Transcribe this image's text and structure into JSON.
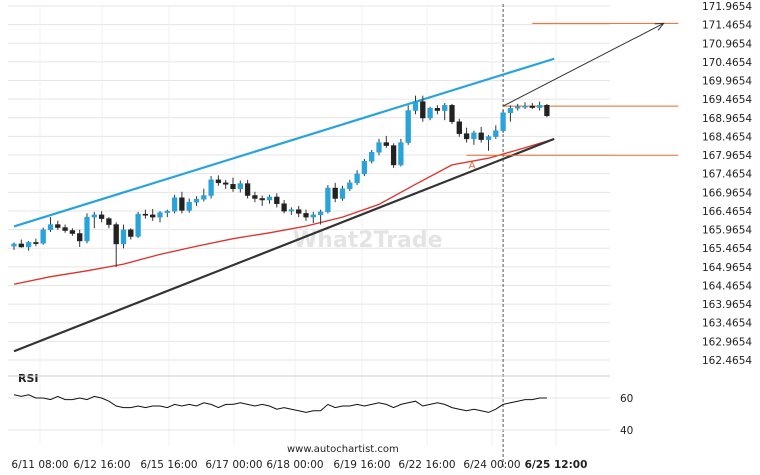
{
  "watermark": "What2Trade",
  "source_url": "www.autochartist.com",
  "rsi_label": "RSI",
  "point_label": "A",
  "colors": {
    "bull": "#29a3dc",
    "bear": "#222222",
    "upper_channel": "#29a3dc",
    "lower_channel": "#333333",
    "ma": "#e0302a",
    "level": "#e36a2a",
    "forecast_arrow": "#333333",
    "grid": "#e5e5e5",
    "rsi_line": "#111111",
    "vline": "#555555"
  },
  "chart_data": [
    {
      "type": "candlestick",
      "title": "",
      "ylim": [
        162.4654,
        171.9654
      ],
      "y_ticks": [
        "171.9654",
        "171.4654",
        "170.9654",
        "170.4654",
        "169.9654",
        "169.4654",
        "168.9654",
        "168.4654",
        "167.9654",
        "167.4654",
        "166.9654",
        "166.4654",
        "165.9654",
        "165.4654",
        "164.9654",
        "164.4654",
        "163.9654",
        "163.4654",
        "162.9654",
        "162.4654"
      ],
      "x_tick_labels": [
        "6/11 08:00",
        "6/12 16:00",
        "6/15 16:00",
        "6/17 00:00",
        "6/18 00:00",
        "6/19 16:00",
        "6/22 16:00",
        "6/24 00:00",
        "6/25 12:00"
      ],
      "candles": [
        [
          165.52,
          165.62,
          165.42,
          165.58
        ],
        [
          165.58,
          165.7,
          165.48,
          165.5
        ],
        [
          165.5,
          165.66,
          165.4,
          165.62
        ],
        [
          165.62,
          165.72,
          165.52,
          165.6
        ],
        [
          165.6,
          166.02,
          165.56,
          165.96
        ],
        [
          165.96,
          166.3,
          165.9,
          166.1
        ],
        [
          166.1,
          166.2,
          165.96,
          166.02
        ],
        [
          166.02,
          166.1,
          165.88,
          165.94
        ],
        [
          165.94,
          166.0,
          165.8,
          165.86
        ],
        [
          165.86,
          165.96,
          165.5,
          165.66
        ],
        [
          165.66,
          166.4,
          165.6,
          166.3
        ],
        [
          166.3,
          166.44,
          166.0,
          166.36
        ],
        [
          166.36,
          166.46,
          166.16,
          166.26
        ],
        [
          166.26,
          166.3,
          166.0,
          166.1
        ],
        [
          166.1,
          166.16,
          164.96,
          165.58
        ],
        [
          165.58,
          166.1,
          165.46,
          165.96
        ],
        [
          165.96,
          166.0,
          165.7,
          165.78
        ],
        [
          165.78,
          166.44,
          165.74,
          166.38
        ],
        [
          166.38,
          166.5,
          166.26,
          166.36
        ],
        [
          166.36,
          166.52,
          166.2,
          166.3
        ],
        [
          166.3,
          166.46,
          166.16,
          166.42
        ],
        [
          166.42,
          166.5,
          166.3,
          166.46
        ],
        [
          166.46,
          166.9,
          166.4,
          166.82
        ],
        [
          166.82,
          166.98,
          166.4,
          166.48
        ],
        [
          166.48,
          166.8,
          166.42,
          166.7
        ],
        [
          166.7,
          166.86,
          166.6,
          166.78
        ],
        [
          166.78,
          167.06,
          166.72,
          166.88
        ],
        [
          166.88,
          167.4,
          166.8,
          167.3
        ],
        [
          167.3,
          167.42,
          167.14,
          167.22
        ],
        [
          167.22,
          167.3,
          167.06,
          167.18
        ],
        [
          167.18,
          167.36,
          166.98,
          167.06
        ],
        [
          167.06,
          167.28,
          166.96,
          167.2
        ],
        [
          167.2,
          167.3,
          166.8,
          166.88
        ],
        [
          166.88,
          166.98,
          166.7,
          166.8
        ],
        [
          166.8,
          166.88,
          166.6,
          166.76
        ],
        [
          166.76,
          166.9,
          166.66,
          166.84
        ],
        [
          166.84,
          166.94,
          166.56,
          166.66
        ],
        [
          166.66,
          166.76,
          166.4,
          166.46
        ],
        [
          166.46,
          166.56,
          166.36,
          166.5
        ],
        [
          166.5,
          166.6,
          166.3,
          166.4
        ],
        [
          166.4,
          166.5,
          166.2,
          166.3
        ],
        [
          166.3,
          166.44,
          166.14,
          166.36
        ],
        [
          166.36,
          166.5,
          166.1,
          166.44
        ],
        [
          166.44,
          167.16,
          166.4,
          167.08
        ],
        [
          167.08,
          167.22,
          166.7,
          166.8
        ],
        [
          166.8,
          167.14,
          166.74,
          167.06
        ],
        [
          167.06,
          167.3,
          167.0,
          167.22
        ],
        [
          167.22,
          167.56,
          167.16,
          167.46
        ],
        [
          167.46,
          167.86,
          167.4,
          167.8
        ],
        [
          167.8,
          168.1,
          167.74,
          168.04
        ],
        [
          168.04,
          168.4,
          167.96,
          168.3
        ],
        [
          168.3,
          168.48,
          168.16,
          168.22
        ],
        [
          168.22,
          168.28,
          167.62,
          167.7
        ],
        [
          167.7,
          168.4,
          167.66,
          168.3
        ],
        [
          168.3,
          169.3,
          168.24,
          169.16
        ],
        [
          169.16,
          169.56,
          169.06,
          169.4
        ],
        [
          169.4,
          169.56,
          168.86,
          168.96
        ],
        [
          168.96,
          169.26,
          168.9,
          169.22
        ],
        [
          169.22,
          169.3,
          169.06,
          169.16
        ],
        [
          169.16,
          169.36,
          168.9,
          169.3
        ],
        [
          169.3,
          169.34,
          168.8,
          168.86
        ],
        [
          168.86,
          168.94,
          168.46,
          168.54
        ],
        [
          168.54,
          168.7,
          168.3,
          168.4
        ],
        [
          168.4,
          168.62,
          168.24,
          168.56
        ],
        [
          168.56,
          168.72,
          168.3,
          168.38
        ],
        [
          168.38,
          168.5,
          168.08,
          168.46
        ],
        [
          168.46,
          168.76,
          168.4,
          168.62
        ],
        [
          168.62,
          169.18,
          168.56,
          169.1
        ],
        [
          169.1,
          169.3,
          168.86,
          169.22
        ],
        [
          169.22,
          169.34,
          169.16,
          169.26
        ],
        [
          169.26,
          169.38,
          169.2,
          169.28
        ],
        [
          169.28,
          169.36,
          169.2,
          169.24
        ],
        [
          169.24,
          169.4,
          169.16,
          169.3
        ],
        [
          169.3,
          169.34,
          168.98,
          169.02
        ]
      ],
      "ma": [
        [
          0,
          164.5
        ],
        [
          5,
          164.7
        ],
        [
          10,
          164.86
        ],
        [
          15,
          165.04
        ],
        [
          20,
          165.3
        ],
        [
          25,
          165.52
        ],
        [
          30,
          165.72
        ],
        [
          35,
          165.88
        ],
        [
          40,
          166.06
        ],
        [
          45,
          166.3
        ],
        [
          50,
          166.64
        ],
        [
          55,
          167.18
        ],
        [
          60,
          167.7
        ],
        [
          65,
          167.88
        ],
        [
          70,
          168.16
        ],
        [
          74,
          168.4
        ]
      ],
      "upper_channel": [
        [
          0,
          166.05
        ],
        [
          74,
          170.55
        ]
      ],
      "lower_channel": [
        [
          0,
          162.7
        ],
        [
          74,
          168.4
        ]
      ],
      "levels": [
        {
          "value": 171.5,
          "from": 71,
          "to": 91
        },
        {
          "value": 169.28,
          "from": 67,
          "to": 91
        },
        {
          "value": 167.96,
          "from": 62,
          "to": 91
        }
      ],
      "forecast_arrow": {
        "from": [
          67,
          169.28
        ],
        "to": [
          89,
          171.5
        ]
      },
      "event_index": 67,
      "point_a": {
        "x": 62,
        "y": 167.96
      }
    },
    {
      "type": "line",
      "title": "RSI",
      "ylim": [
        30,
        70
      ],
      "y_ticks": [
        "60",
        "40"
      ],
      "values": [
        62,
        61,
        62,
        60,
        60,
        59,
        61,
        59,
        59,
        60,
        59,
        61,
        60,
        58,
        55,
        54,
        54,
        55,
        54,
        55,
        55,
        54,
        56,
        55,
        56,
        55,
        57,
        56,
        54,
        56,
        56,
        57,
        56,
        55,
        56,
        55,
        53,
        54,
        53,
        52,
        51,
        52,
        52,
        56,
        54,
        55,
        55,
        56,
        55,
        56,
        57,
        56,
        54,
        56,
        57,
        58,
        55,
        56,
        57,
        56,
        54,
        53,
        52,
        53,
        52,
        51,
        53,
        56,
        57,
        58,
        59,
        59,
        60,
        60
      ]
    }
  ]
}
